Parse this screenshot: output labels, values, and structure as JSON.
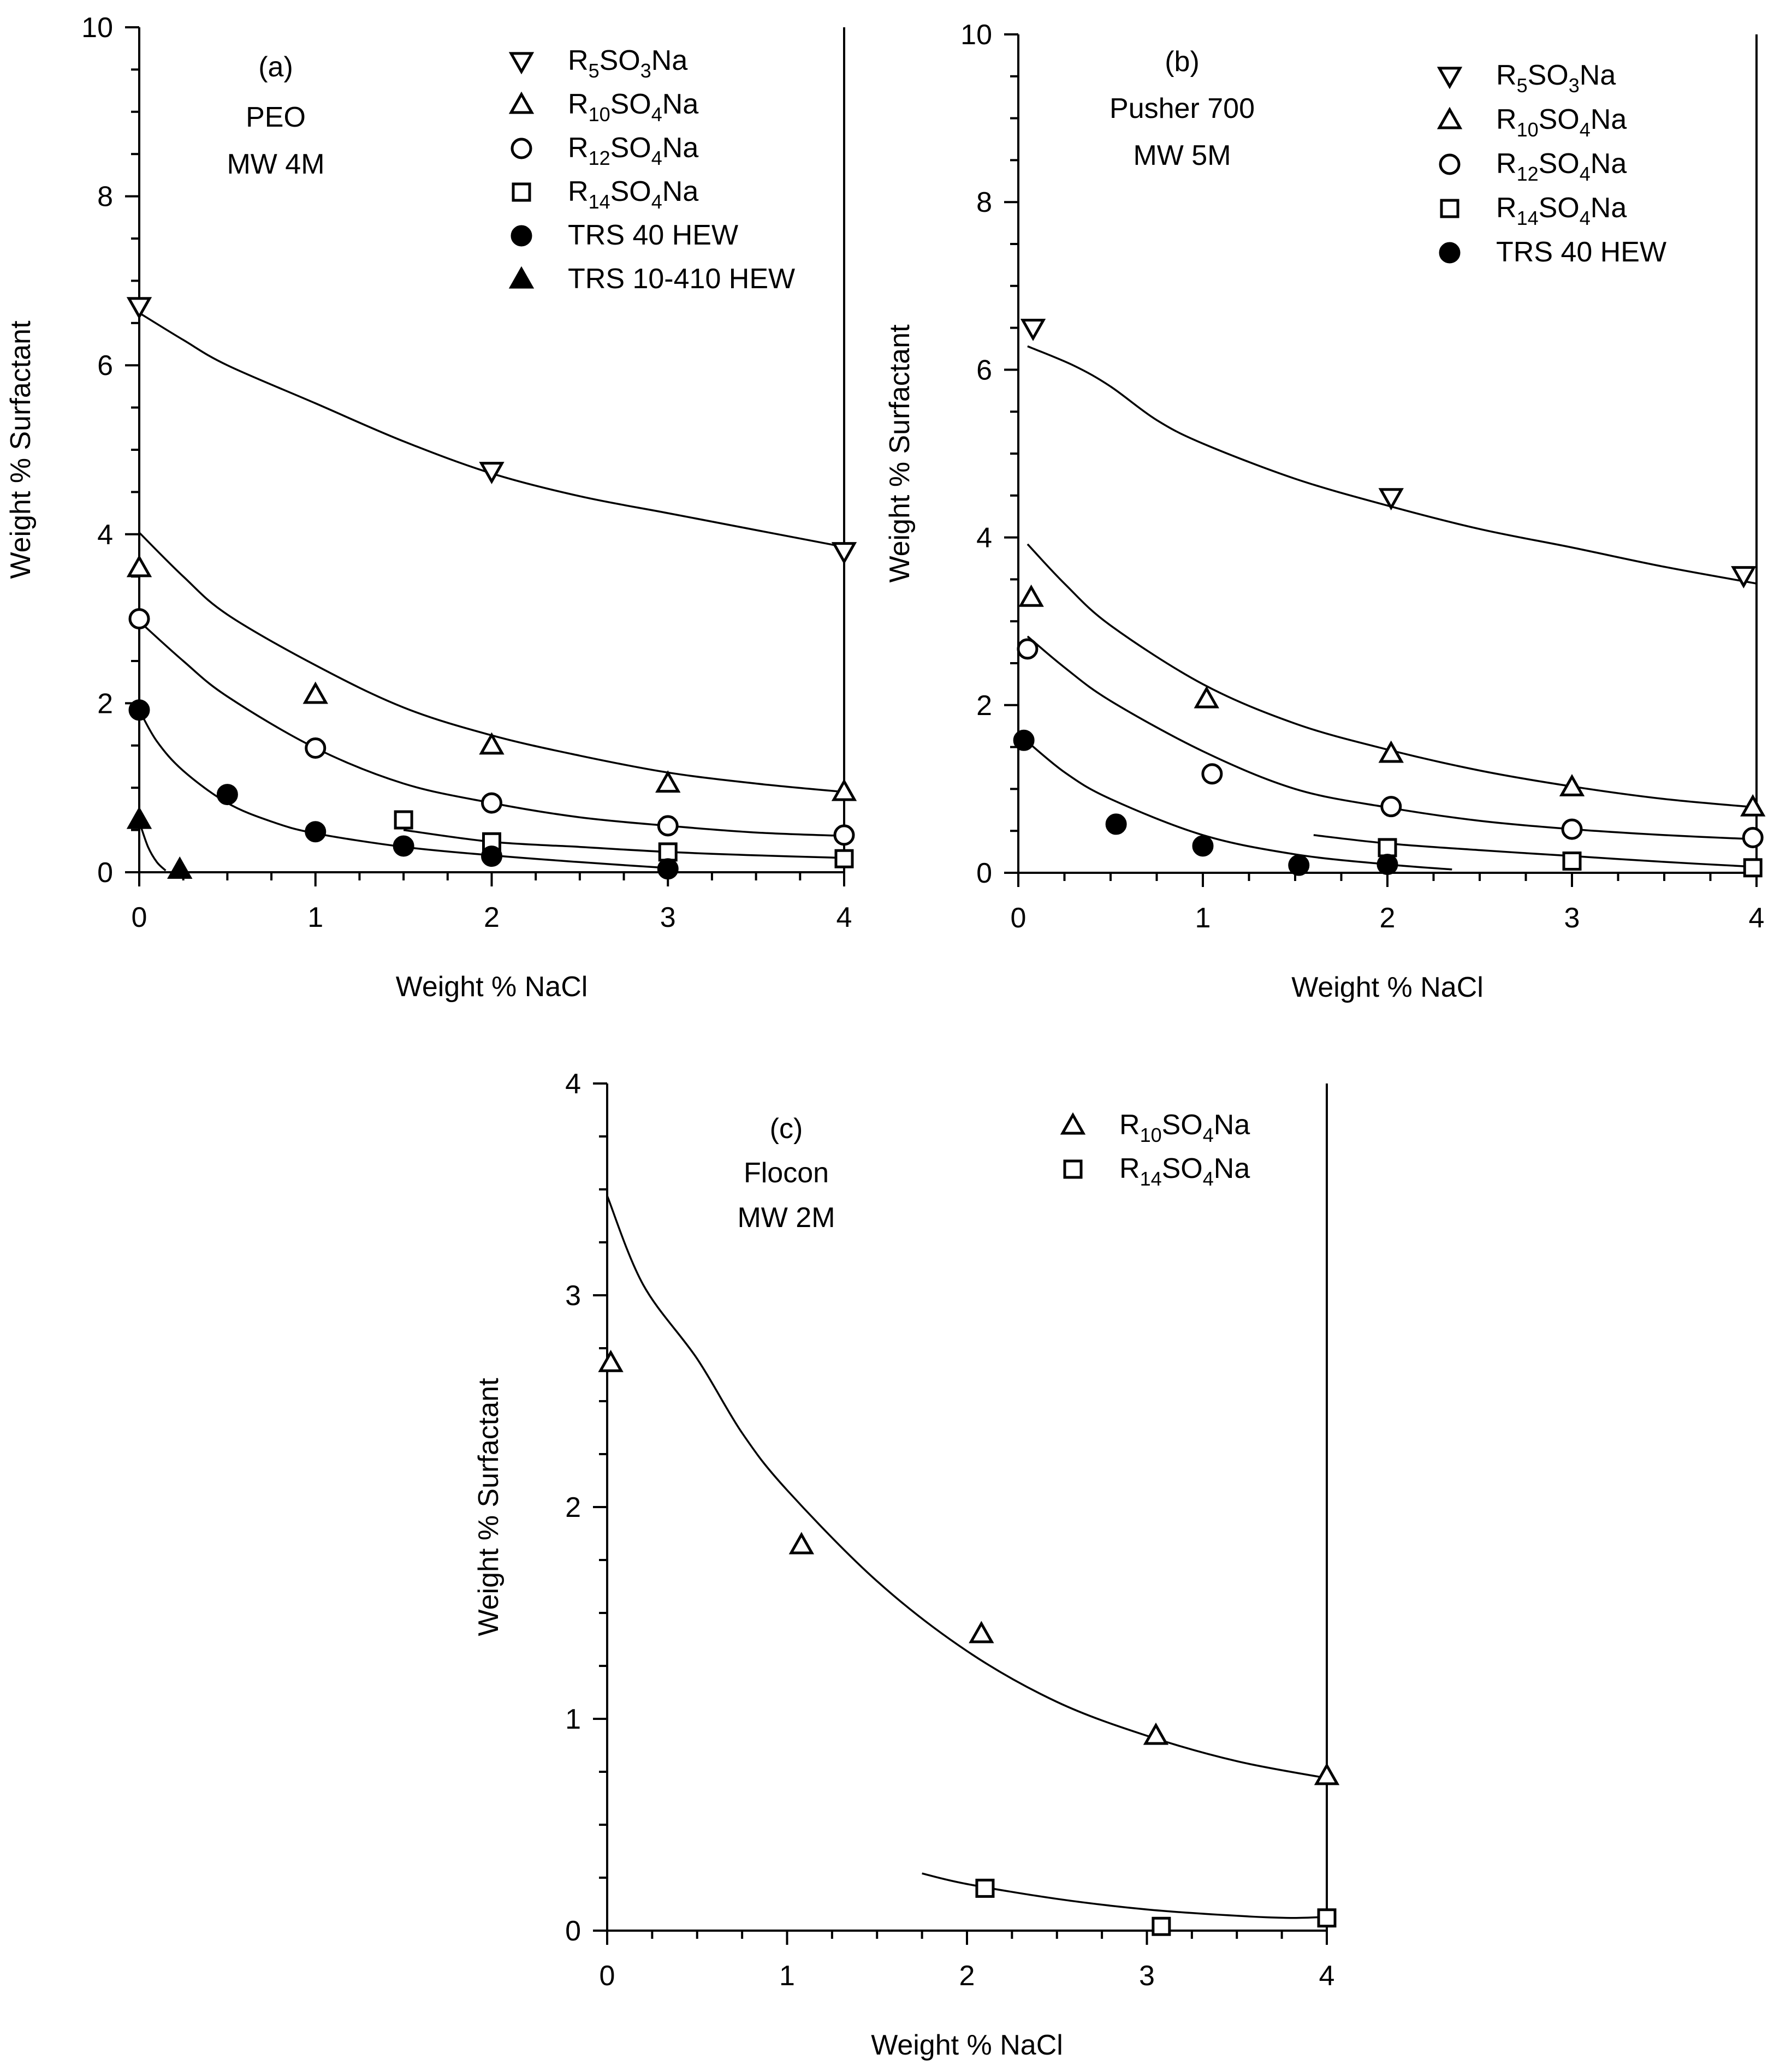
{
  "chart_data": [
    {
      "id": "a",
      "type": "scatter",
      "panel_label": "(a)",
      "annotation_lines": [
        "PEO",
        "MW 4M"
      ],
      "xlabel": "Weight % NaCl",
      "ylabel": "Weight % Surfactant",
      "xlim": [
        0,
        4
      ],
      "ylim": [
        0,
        10
      ],
      "x_ticks": [
        "0",
        "1",
        "2",
        "3",
        "4"
      ],
      "y_ticks": [
        "0",
        "2",
        "4",
        "6",
        "8",
        "10"
      ],
      "y_tick_values": [
        0,
        2,
        4,
        6,
        8,
        10
      ],
      "legend_position": "top-right",
      "series": [
        {
          "name_main": "R",
          "name_sub1": "5",
          "name_mid": "SO",
          "name_sub2": "3",
          "name_end": "Na",
          "marker": "triangle-down-open",
          "points": [
            [
              0,
              6.7
            ],
            [
              2,
              4.75
            ],
            [
              4,
              3.8
            ]
          ],
          "fit": [
            [
              0,
              6.62
            ],
            [
              0.25,
              6.3
            ],
            [
              0.5,
              6.0
            ],
            [
              1,
              5.55
            ],
            [
              1.5,
              5.1
            ],
            [
              2,
              4.72
            ],
            [
              2.5,
              4.45
            ],
            [
              3,
              4.25
            ],
            [
              3.5,
              4.05
            ],
            [
              4,
              3.85
            ]
          ]
        },
        {
          "name_main": "R",
          "name_sub1": "10",
          "name_mid": "SO",
          "name_sub2": "4",
          "name_end": "Na",
          "marker": "triangle-up-open",
          "points": [
            [
              0,
              3.6
            ],
            [
              1,
              2.1
            ],
            [
              2,
              1.5
            ],
            [
              3,
              1.05
            ],
            [
              4,
              0.95
            ]
          ],
          "fit": [
            [
              0,
              4.02
            ],
            [
              0.25,
              3.5
            ],
            [
              0.5,
              3.05
            ],
            [
              1,
              2.45
            ],
            [
              1.5,
              1.95
            ],
            [
              2,
              1.62
            ],
            [
              2.5,
              1.38
            ],
            [
              3,
              1.18
            ],
            [
              3.5,
              1.05
            ],
            [
              4,
              0.95
            ]
          ]
        },
        {
          "name_main": "R",
          "name_sub1": "12",
          "name_mid": "SO",
          "name_sub2": "4",
          "name_end": "Na",
          "marker": "circle-open",
          "points": [
            [
              0,
              3.0
            ],
            [
              1,
              1.47
            ],
            [
              2,
              0.82
            ],
            [
              3,
              0.55
            ],
            [
              4,
              0.44
            ]
          ],
          "fit": [
            [
              0,
              2.97
            ],
            [
              0.25,
              2.5
            ],
            [
              0.5,
              2.08
            ],
            [
              1,
              1.47
            ],
            [
              1.5,
              1.05
            ],
            [
              2,
              0.82
            ],
            [
              2.5,
              0.65
            ],
            [
              3,
              0.55
            ],
            [
              3.5,
              0.47
            ],
            [
              4,
              0.43
            ]
          ]
        },
        {
          "name_main": "R",
          "name_sub1": "14",
          "name_mid": "SO",
          "name_sub2": "4",
          "name_end": "Na",
          "marker": "square-open",
          "points": [
            [
              1.5,
              0.62
            ],
            [
              2,
              0.36
            ],
            [
              3,
              0.24
            ],
            [
              4,
              0.16
            ]
          ],
          "fit": [
            [
              1.5,
              0.5
            ],
            [
              2,
              0.36
            ],
            [
              2.5,
              0.3
            ],
            [
              3,
              0.24
            ],
            [
              3.5,
              0.2
            ],
            [
              4,
              0.17
            ]
          ]
        },
        {
          "name_main": "TRS 40 HEW",
          "name_sub1": "",
          "name_mid": "",
          "name_sub2": "",
          "name_end": "",
          "marker": "circle-filled",
          "points": [
            [
              0,
              1.92
            ],
            [
              0.5,
              0.92
            ],
            [
              1,
              0.48
            ],
            [
              1.5,
              0.31
            ],
            [
              2,
              0.19
            ],
            [
              3,
              0.04
            ]
          ],
          "fit": [
            [
              0,
              1.92
            ],
            [
              0.1,
              1.55
            ],
            [
              0.25,
              1.2
            ],
            [
              0.5,
              0.82
            ],
            [
              0.75,
              0.6
            ],
            [
              1,
              0.46
            ],
            [
              1.5,
              0.3
            ],
            [
              2,
              0.2
            ],
            [
              2.5,
              0.12
            ],
            [
              3,
              0.05
            ]
          ]
        },
        {
          "name_main": "TRS 10-410 HEW",
          "name_sub1": "",
          "name_mid": "",
          "name_sub2": "",
          "name_end": "",
          "marker": "triangle-up-filled",
          "points": [
            [
              0,
              0.62
            ],
            [
              0.23,
              0.03
            ]
          ],
          "fit": [
            [
              0,
              0.6
            ],
            [
              0.05,
              0.3
            ],
            [
              0.1,
              0.12
            ],
            [
              0.15,
              0.02
            ]
          ]
        }
      ]
    },
    {
      "id": "b",
      "type": "scatter",
      "panel_label": "(b)",
      "annotation_lines": [
        "Pusher 700",
        "MW 5M"
      ],
      "xlabel": "Weight % NaCl",
      "ylabel": "Weight % Surfactant",
      "xlim": [
        0,
        4
      ],
      "ylim": [
        0,
        10
      ],
      "x_ticks": [
        "0",
        "1",
        "2",
        "3",
        "4"
      ],
      "y_ticks": [
        "0",
        "2",
        "4",
        "6",
        "8",
        "10"
      ],
      "y_tick_values": [
        0,
        2,
        4,
        6,
        8,
        10
      ],
      "legend_position": "top-right",
      "series": [
        {
          "name_main": "R",
          "name_sub1": "5",
          "name_mid": "SO",
          "name_sub2": "3",
          "name_end": "Na",
          "marker": "triangle-down-open",
          "points": [
            [
              0.08,
              6.5
            ],
            [
              2.02,
              4.48
            ],
            [
              3.93,
              3.55
            ]
          ],
          "fit": [
            [
              0.05,
              6.28
            ],
            [
              0.3,
              6.05
            ],
            [
              0.5,
              5.8
            ],
            [
              0.75,
              5.4
            ],
            [
              1,
              5.12
            ],
            [
              1.5,
              4.7
            ],
            [
              2,
              4.38
            ],
            [
              2.5,
              4.1
            ],
            [
              3,
              3.88
            ],
            [
              3.5,
              3.65
            ],
            [
              4,
              3.45
            ]
          ]
        },
        {
          "name_main": "R",
          "name_sub1": "10",
          "name_mid": "SO",
          "name_sub2": "4",
          "name_end": "Na",
          "marker": "triangle-up-open",
          "points": [
            [
              0.07,
              3.28
            ],
            [
              1.02,
              2.07
            ],
            [
              2.02,
              1.42
            ],
            [
              3.0,
              1.02
            ],
            [
              3.98,
              0.78
            ]
          ],
          "fit": [
            [
              0.05,
              3.92
            ],
            [
              0.25,
              3.45
            ],
            [
              0.5,
              2.95
            ],
            [
              1,
              2.25
            ],
            [
              1.5,
              1.78
            ],
            [
              2,
              1.47
            ],
            [
              2.5,
              1.22
            ],
            [
              3,
              1.03
            ],
            [
              3.5,
              0.88
            ],
            [
              4,
              0.78
            ]
          ]
        },
        {
          "name_main": "R",
          "name_sub1": "12",
          "name_mid": "SO",
          "name_sub2": "4",
          "name_end": "Na",
          "marker": "circle-open",
          "points": [
            [
              0.05,
              2.67
            ],
            [
              1.05,
              1.18
            ],
            [
              2.02,
              0.79
            ],
            [
              3.0,
              0.52
            ],
            [
              3.98,
              0.42
            ]
          ],
          "fit": [
            [
              0.05,
              2.82
            ],
            [
              0.25,
              2.45
            ],
            [
              0.5,
              2.05
            ],
            [
              1,
              1.45
            ],
            [
              1.5,
              1.0
            ],
            [
              2,
              0.78
            ],
            [
              2.5,
              0.62
            ],
            [
              3,
              0.52
            ],
            [
              3.5,
              0.45
            ],
            [
              4,
              0.4
            ]
          ]
        },
        {
          "name_main": "R",
          "name_sub1": "14",
          "name_mid": "SO",
          "name_sub2": "4",
          "name_end": "Na",
          "marker": "square-open",
          "points": [
            [
              2.0,
              0.3
            ],
            [
              3.0,
              0.14
            ],
            [
              3.98,
              0.06
            ]
          ],
          "fit": [
            [
              1.6,
              0.45
            ],
            [
              2,
              0.35
            ],
            [
              2.5,
              0.27
            ],
            [
              3,
              0.2
            ],
            [
              3.5,
              0.13
            ],
            [
              4,
              0.07
            ]
          ]
        },
        {
          "name_main": "TRS 40 HEW",
          "name_sub1": "",
          "name_mid": "",
          "name_sub2": "",
          "name_end": "",
          "marker": "circle-filled",
          "points": [
            [
              0.03,
              1.58
            ],
            [
              0.53,
              0.58
            ],
            [
              1.0,
              0.32
            ],
            [
              1.52,
              0.09
            ],
            [
              2.0,
              0.1
            ]
          ],
          "fit": [
            [
              0.02,
              1.62
            ],
            [
              0.25,
              1.2
            ],
            [
              0.5,
              0.88
            ],
            [
              1,
              0.45
            ],
            [
              1.5,
              0.22
            ],
            [
              2,
              0.1
            ],
            [
              2.35,
              0.04
            ]
          ]
        }
      ]
    },
    {
      "id": "c",
      "type": "scatter",
      "panel_label": "(c)",
      "annotation_lines": [
        "Flocon",
        "MW 2M"
      ],
      "xlabel": "Weight % NaCl",
      "ylabel": "Weight % Surfactant",
      "xlim": [
        0,
        4
      ],
      "ylim": [
        0,
        4
      ],
      "x_ticks": [
        "0",
        "1",
        "2",
        "3",
        "4"
      ],
      "y_ticks": [
        "0",
        "1",
        "2",
        "3",
        "4"
      ],
      "y_tick_values": [
        0,
        1,
        2,
        3,
        4
      ],
      "legend_position": "top-right",
      "series": [
        {
          "name_main": "R",
          "name_sub1": "10",
          "name_mid": "SO",
          "name_sub2": "4",
          "name_end": "Na",
          "marker": "triangle-up-open",
          "points": [
            [
              0.02,
              2.68
            ],
            [
              1.08,
              1.82
            ],
            [
              2.08,
              1.4
            ],
            [
              3.05,
              0.92
            ],
            [
              4.0,
              0.73
            ]
          ],
          "fit": [
            [
              0,
              3.47
            ],
            [
              0.2,
              3.05
            ],
            [
              0.5,
              2.7
            ],
            [
              0.75,
              2.35
            ],
            [
              1,
              2.08
            ],
            [
              1.5,
              1.65
            ],
            [
              2,
              1.32
            ],
            [
              2.5,
              1.08
            ],
            [
              3,
              0.92
            ],
            [
              3.5,
              0.8
            ],
            [
              4,
              0.72
            ]
          ]
        },
        {
          "name_main": "R",
          "name_sub1": "14",
          "name_mid": "SO",
          "name_sub2": "4",
          "name_end": "Na",
          "marker": "square-open",
          "points": [
            [
              2.1,
              0.2
            ],
            [
              3.08,
              0.02
            ],
            [
              4.0,
              0.06
            ]
          ],
          "fit": [
            [
              1.75,
              0.27
            ],
            [
              2,
              0.22
            ],
            [
              2.5,
              0.15
            ],
            [
              3,
              0.1
            ],
            [
              3.5,
              0.07
            ],
            [
              3.8,
              0.06
            ],
            [
              4,
              0.065
            ]
          ]
        }
      ]
    }
  ]
}
